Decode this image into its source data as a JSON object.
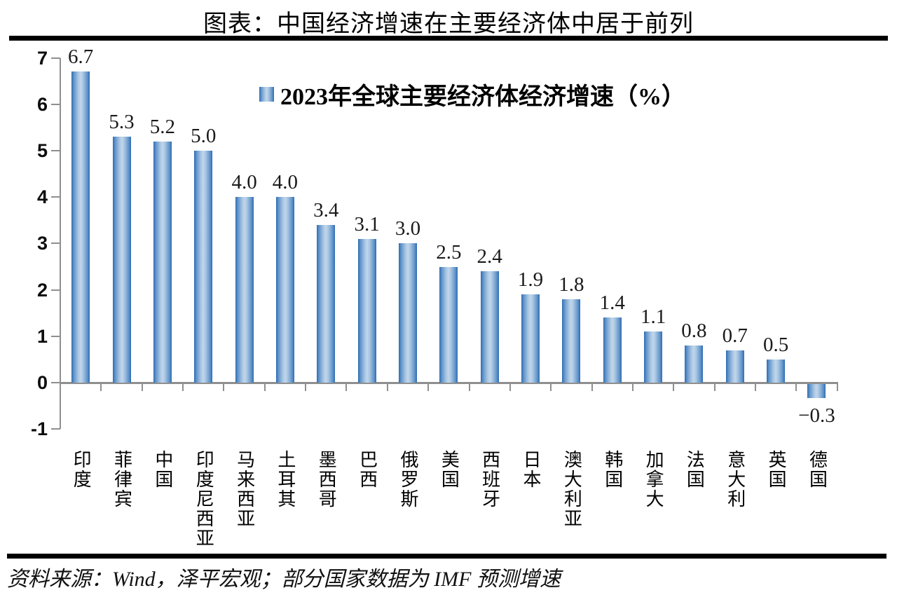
{
  "header": {
    "title": "图表：中国经济增速在主要经济体中居于前列"
  },
  "chart_data": {
    "type": "bar",
    "title": "图表：中国经济增速在主要经济体中居于前列",
    "legend": "2023年全球主要经济体经济增速（%）",
    "legend_position": "top-center-inside",
    "grid": false,
    "ylim": [
      -1,
      7
    ],
    "y_ticks": [
      "7",
      "6",
      "5",
      "4",
      "3",
      "2",
      "1",
      "0",
      "-1"
    ],
    "categories": [
      "印度",
      "菲律宾",
      "中国",
      "印度尼西亚",
      "马来西亚",
      "土耳其",
      "墨西哥",
      "巴西",
      "俄罗斯",
      "美国",
      "西班牙",
      "日本",
      "澳大利亚",
      "韩国",
      "加拿大",
      "法国",
      "意大利",
      "英国",
      "德国"
    ],
    "values": [
      6.7,
      5.3,
      5.2,
      5.0,
      4.0,
      4.0,
      3.4,
      3.1,
      3.0,
      2.5,
      2.4,
      1.9,
      1.8,
      1.4,
      1.1,
      0.8,
      0.7,
      0.5,
      -0.3
    ],
    "value_labels": [
      "6.7",
      "5.3",
      "5.2",
      "5.0",
      "4.0",
      "4.0",
      "3.4",
      "3.1",
      "3.0",
      "2.5",
      "2.4",
      "1.9",
      "1.8",
      "1.4",
      "1.1",
      "0.8",
      "0.7",
      "0.5",
      "−0.3"
    ],
    "colors": {
      "bar_edge": "#2d6bb3",
      "bar_center": "#c2d7ec",
      "axis": "#8f8f8f",
      "text": "#000000"
    }
  },
  "footer": {
    "source": "资料来源：Wind，泽平宏观；部分国家数据为 IMF 预测增速"
  }
}
